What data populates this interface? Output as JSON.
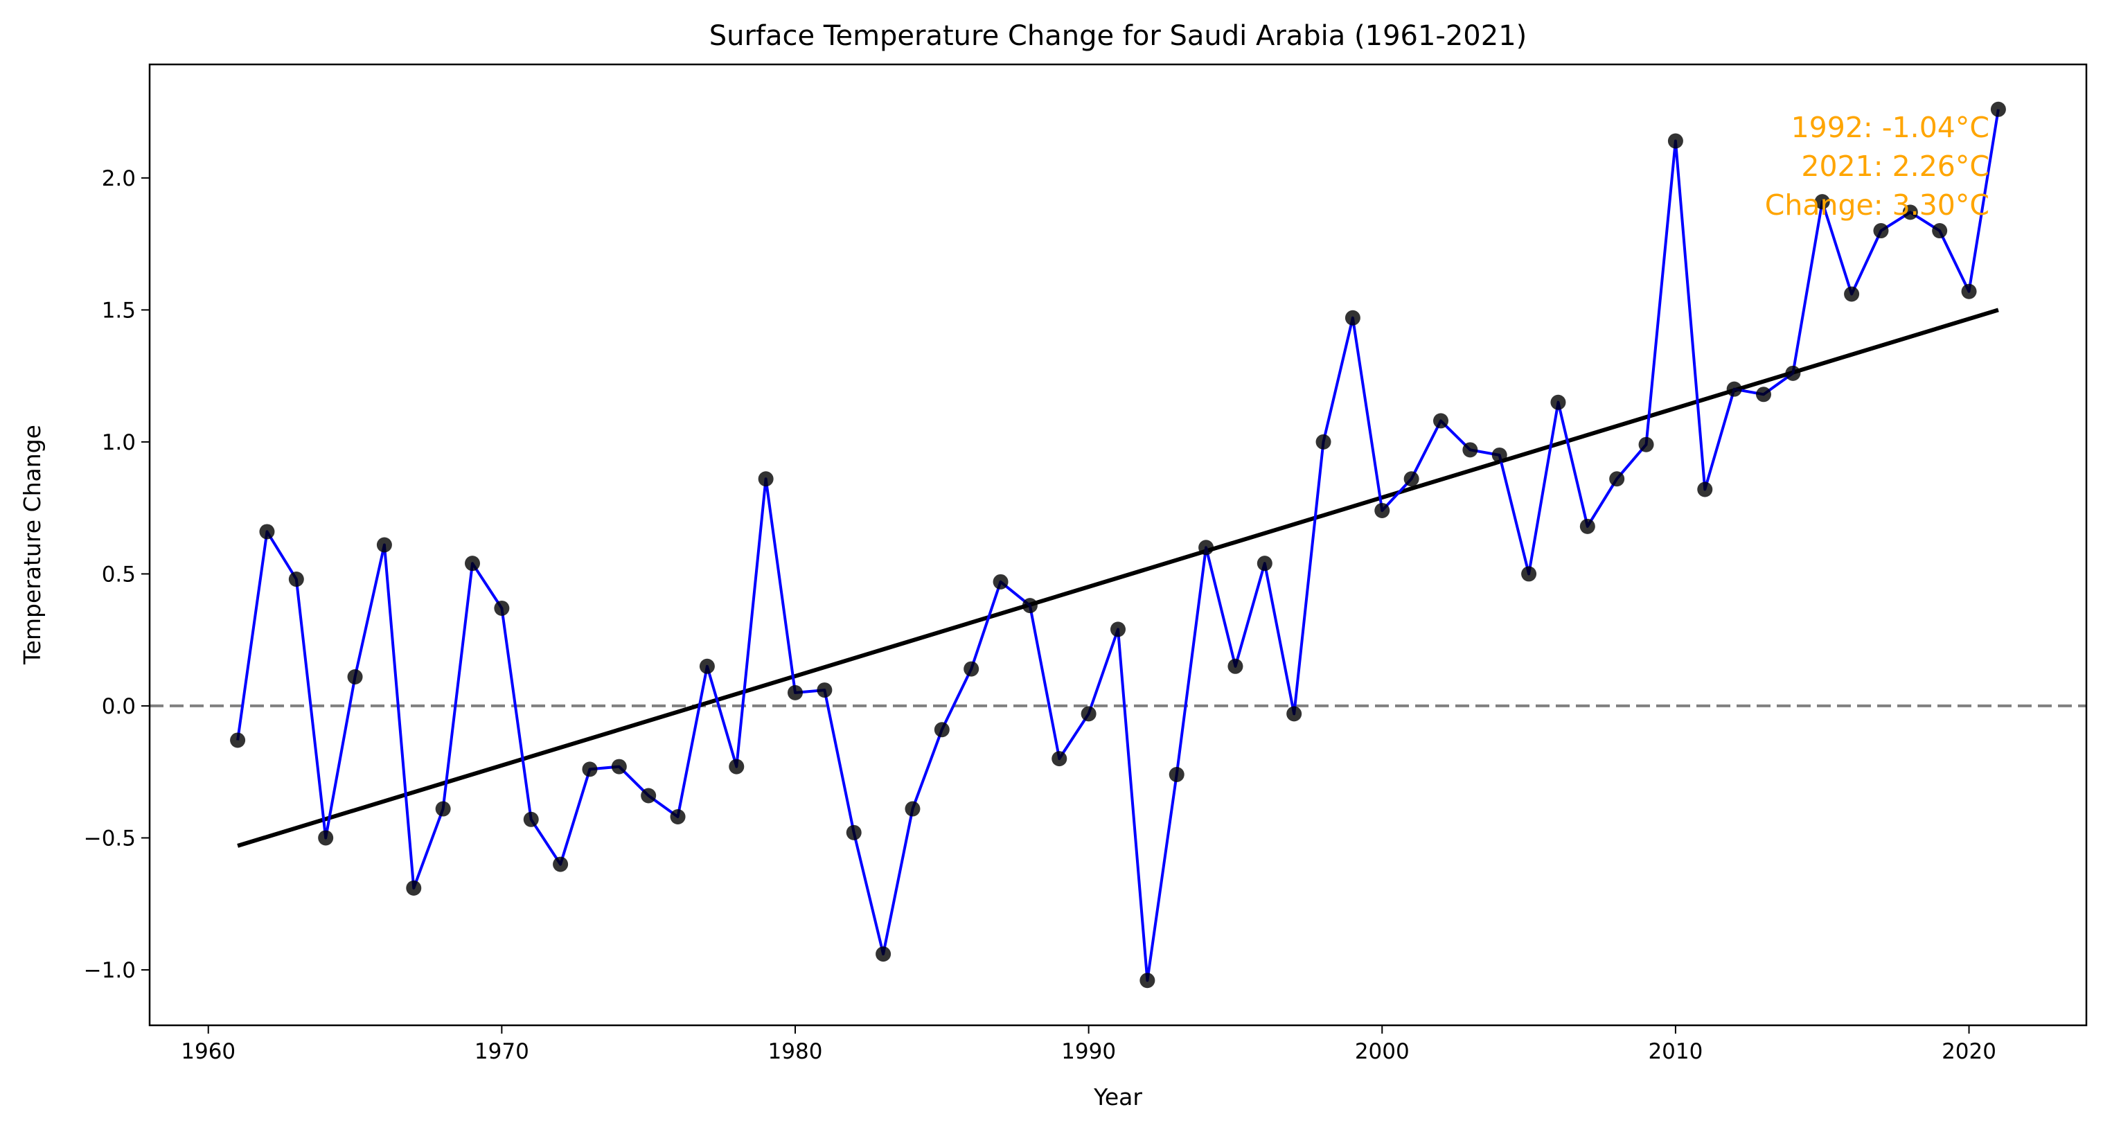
{
  "chart_data": {
    "type": "line",
    "title": "Surface Temperature Change for Saudi Arabia (1961-2021)",
    "xlabel": "Year",
    "ylabel": "Temperature Change",
    "xlim": [
      1958.0,
      2024.0
    ],
    "ylim": [
      -1.21,
      2.43
    ],
    "x_ticks": [
      1960,
      1970,
      1980,
      1990,
      2000,
      2010,
      2020
    ],
    "y_ticks": [
      -1.0,
      -0.5,
      0.0,
      0.5,
      1.0,
      1.5,
      2.0
    ],
    "x_tick_labels": [
      "1960",
      "1970",
      "1980",
      "1990",
      "2000",
      "2010",
      "2020"
    ],
    "y_tick_labels": [
      "−1.0",
      "−0.5",
      "0.0",
      "0.5",
      "1.0",
      "1.5",
      "2.0"
    ],
    "grid": false,
    "series": [
      {
        "x": [
          1961,
          1962,
          1963,
          1964,
          1965,
          1966,
          1967,
          1968,
          1969,
          1970,
          1971,
          1972,
          1973,
          1974,
          1975,
          1976,
          1977,
          1978,
          1979,
          1980,
          1981,
          1982,
          1983,
          1984,
          1985,
          1986,
          1987,
          1988,
          1989,
          1990,
          1991,
          1992,
          1993,
          1994,
          1995,
          1996,
          1997,
          1998,
          1999,
          2000,
          2001,
          2002,
          2003,
          2004,
          2005,
          2006,
          2007,
          2008,
          2009,
          2010,
          2011,
          2012,
          2013,
          2014,
          2015,
          2016,
          2017,
          2018,
          2019,
          2020,
          2021
        ],
        "values": [
          -0.13,
          0.66,
          0.48,
          -0.5,
          0.11,
          0.61,
          -0.69,
          -0.39,
          0.54,
          0.37,
          -0.43,
          -0.6,
          -0.24,
          -0.23,
          -0.34,
          -0.42,
          0.15,
          -0.23,
          0.86,
          0.05,
          0.06,
          -0.48,
          -0.94,
          -0.39,
          -0.09,
          0.14,
          0.47,
          0.38,
          -0.2,
          -0.03,
          0.29,
          -1.04,
          -0.26,
          0.6,
          0.15,
          0.54,
          -0.03,
          1.0,
          1.47,
          0.74,
          0.86,
          1.08,
          0.97,
          0.95,
          0.5,
          1.15,
          0.68,
          0.86,
          0.99,
          2.14,
          0.82,
          1.2,
          1.18,
          1.26,
          1.91,
          1.56,
          1.8,
          1.87,
          1.8,
          1.57,
          2.26
        ],
        "color": "#0000ff",
        "marker_color": "#000000"
      }
    ],
    "trend_line": {
      "x": [
        1961,
        2021
      ],
      "y": [
        -0.53,
        1.5
      ],
      "color": "#000000"
    },
    "reference_line": {
      "y": 0.0,
      "style": "dashed",
      "color": "#808080"
    },
    "annotation": {
      "lines": [
        "1992: -1.04°C",
        "2021: 2.26°C",
        "Change: 3.30°C"
      ],
      "color": "#ffa500",
      "placement": "top-right"
    }
  }
}
